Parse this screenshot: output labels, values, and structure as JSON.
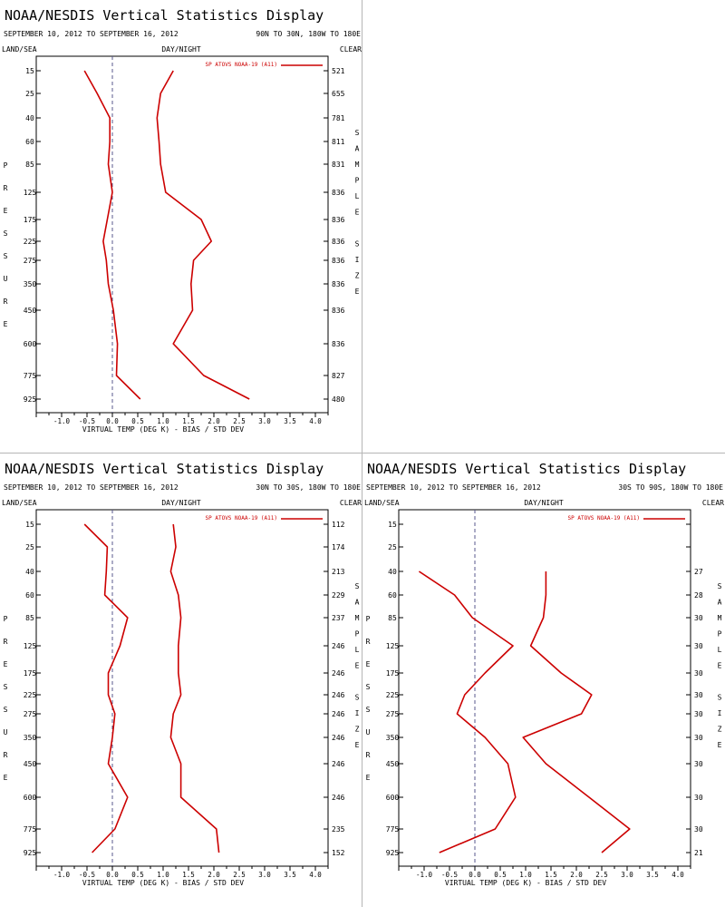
{
  "colors": {
    "line": "#cc0000",
    "axis": "#000000",
    "zero_line": "#5a5a8c",
    "divider": "#b5b5b5"
  },
  "chart_data": [
    {
      "type": "line",
      "title": "NOAA/NESDIS Vertical Statistics Display",
      "date_range": "SEPTEMBER 10, 2012 TO SEPTEMBER 16, 2012",
      "region": "90N TO 30N, 180W TO 180E",
      "left_header": "LAND/SEA",
      "mid_header": "DAY/NIGHT",
      "right_header": "CLEAR",
      "legend": "SP ATOVS NOAA-19 (A11)",
      "xlabel": "VIRTUAL TEMP (DEG K) - BIAS / STD DEV",
      "ylabel": "PRESSURE",
      "right_label": "SAMPLE SIZE",
      "xlim": [
        -1.5,
        4.25
      ],
      "x_ticks": [
        "-1.0",
        "-0.5",
        "0.0",
        "0.5",
        "1.0",
        "1.5",
        "2.0",
        "2.5",
        "3.0",
        "3.5",
        "4.0"
      ],
      "levels": [
        "15",
        "25",
        "40",
        "60",
        "85",
        "125",
        "175",
        "225",
        "275",
        "350",
        "450",
        "600",
        "775",
        "925"
      ],
      "sample_sizes": [
        "521",
        "655",
        "781",
        "811",
        "831",
        "836",
        "836",
        "836",
        "836",
        "836",
        "836",
        "836",
        "827",
        "480"
      ],
      "series": [
        {
          "name": "bias",
          "values": [
            -0.55,
            -0.3,
            -0.05,
            -0.05,
            -0.08,
            0.0,
            -0.1,
            -0.18,
            -0.12,
            -0.08,
            0.02,
            0.1,
            0.08,
            0.55
          ]
        },
        {
          "name": "std dev",
          "values": [
            1.2,
            0.95,
            0.88,
            0.92,
            0.95,
            1.05,
            1.75,
            1.95,
            1.6,
            1.55,
            1.58,
            1.2,
            1.8,
            2.7
          ]
        }
      ]
    },
    {
      "type": "line",
      "title": "NOAA/NESDIS Vertical Statistics Display",
      "date_range": "SEPTEMBER 10, 2012 TO SEPTEMBER 16, 2012",
      "region": "30N TO 30S, 180W TO 180E",
      "left_header": "LAND/SEA",
      "mid_header": "DAY/NIGHT",
      "right_header": "CLEAR",
      "legend": "SP ATOVS NOAA-19 (A11)",
      "xlabel": "VIRTUAL TEMP (DEG K) - BIAS / STD DEV",
      "ylabel": "PRESSURE",
      "right_label": "SAMPLE SIZE",
      "xlim": [
        -1.5,
        4.25
      ],
      "x_ticks": [
        "-1.0",
        "-0.5",
        "0.0",
        "0.5",
        "1.0",
        "1.5",
        "2.0",
        "2.5",
        "3.0",
        "3.5",
        "4.0"
      ],
      "levels": [
        "15",
        "25",
        "40",
        "60",
        "85",
        "125",
        "175",
        "225",
        "275",
        "350",
        "450",
        "600",
        "775",
        "925"
      ],
      "sample_sizes": [
        "112",
        "174",
        "213",
        "229",
        "237",
        "246",
        "246",
        "246",
        "246",
        "246",
        "246",
        "246",
        "235",
        "152"
      ],
      "series": [
        {
          "name": "bias",
          "values": [
            -0.55,
            -0.1,
            -0.12,
            -0.15,
            0.3,
            0.15,
            -0.08,
            -0.08,
            0.05,
            0.0,
            -0.08,
            0.3,
            0.05,
            -0.4
          ]
        },
        {
          "name": "std dev",
          "values": [
            1.2,
            1.25,
            1.15,
            1.3,
            1.35,
            1.3,
            1.3,
            1.35,
            1.2,
            1.15,
            1.35,
            1.35,
            2.05,
            2.1
          ]
        }
      ]
    },
    {
      "type": "line",
      "title": "NOAA/NESDIS Vertical Statistics Display",
      "date_range": "SEPTEMBER 10, 2012 TO SEPTEMBER 16, 2012",
      "region": "30S TO 90S, 180W TO 180E",
      "left_header": "LAND/SEA",
      "mid_header": "DAY/NIGHT",
      "right_header": "CLEAR",
      "legend": "SP ATOVS NOAA-19 (A11)",
      "xlabel": "VIRTUAL TEMP (DEG K) - BIAS / STD DEV",
      "ylabel": "PRESSURE",
      "right_label": "SAMPLE SIZE",
      "xlim": [
        -1.5,
        4.25
      ],
      "x_ticks": [
        "-1.0",
        "-0.5",
        "0.0",
        "0.5",
        "1.0",
        "1.5",
        "2.0",
        "2.5",
        "3.0",
        "3.5",
        "4.0"
      ],
      "levels": [
        "15",
        "25",
        "40",
        "60",
        "85",
        "125",
        "175",
        "225",
        "275",
        "350",
        "450",
        "600",
        "775",
        "925"
      ],
      "sample_sizes": [
        "",
        "",
        "27",
        "28",
        "30",
        "30",
        "30",
        "30",
        "30",
        "30",
        "30",
        "30",
        "30",
        "21"
      ],
      "series": [
        {
          "name": "bias",
          "values": [
            null,
            null,
            -1.1,
            -0.4,
            -0.05,
            0.75,
            0.2,
            -0.2,
            -0.35,
            0.2,
            0.65,
            0.8,
            0.4,
            -0.7
          ]
        },
        {
          "name": "std dev",
          "values": [
            null,
            null,
            1.4,
            1.4,
            1.35,
            1.1,
            1.7,
            2.3,
            2.1,
            0.95,
            1.4,
            2.25,
            3.05,
            2.5
          ]
        }
      ]
    }
  ]
}
